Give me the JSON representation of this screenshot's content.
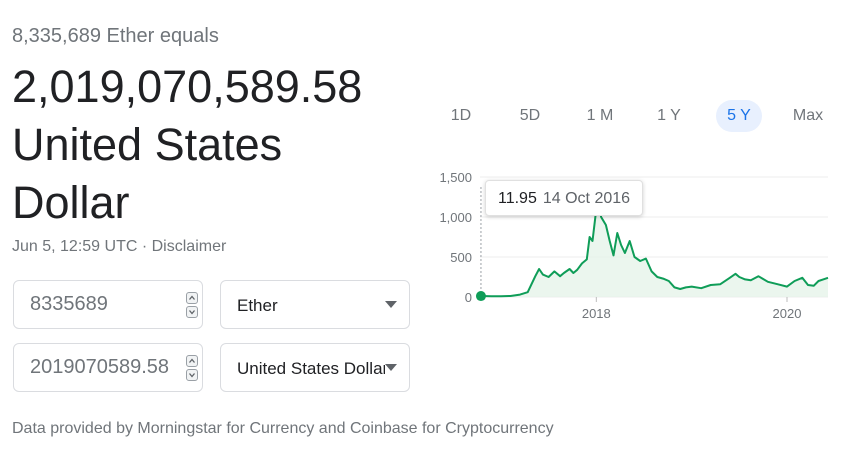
{
  "header": {
    "subtitle": "8,335,689 Ether equals",
    "result_line1": "2,019,070,589.58",
    "result_line2": "United States",
    "result_line3": "Dollar"
  },
  "meta": {
    "timestamp": "Jun 5, 12:59 UTC",
    "separator": " · ",
    "disclaimer": "Disclaimer"
  },
  "converter": {
    "from_value": "8335689",
    "from_currency": "Ether",
    "to_value": "2019070589.58",
    "to_currency": "United States Dollar"
  },
  "footer": {
    "attribution": "Data provided by Morningstar for Currency and Coinbase for Cryptocurrency"
  },
  "range_tabs": [
    {
      "label": "1D",
      "active": false
    },
    {
      "label": "5D",
      "active": false
    },
    {
      "label": "1 M",
      "active": false
    },
    {
      "label": "1 Y",
      "active": false
    },
    {
      "label": "5 Y",
      "active": true
    },
    {
      "label": "Max",
      "active": false
    }
  ],
  "tooltip": {
    "value": "11.95",
    "date": "14 Oct 2016"
  },
  "colors": {
    "line": "#0f9d58",
    "fill": "#e6f4ea",
    "accent": "#1a73e8",
    "accent_bg": "#e8f0fe"
  },
  "chart_data": {
    "type": "area",
    "title": "",
    "xlabel": "",
    "ylabel": "",
    "ylim": [
      0,
      1500
    ],
    "yticks": [
      0,
      500,
      1000,
      1500
    ],
    "ytick_labels": [
      "0",
      "500",
      "1,000",
      "1,500"
    ],
    "xlim": [
      2016.78,
      2020.43
    ],
    "xticks": [
      2018,
      2020
    ],
    "xtick_labels": [
      "2018",
      "2020"
    ],
    "grid": true,
    "legend": "none",
    "highlight_point": {
      "x": 2016.79,
      "y": 11.95
    },
    "x": [
      2016.79,
      2016.9,
      2017.0,
      2017.1,
      2017.2,
      2017.28,
      2017.36,
      2017.4,
      2017.44,
      2017.5,
      2017.56,
      2017.62,
      2017.66,
      2017.72,
      2017.76,
      2017.8,
      2017.85,
      2017.9,
      2017.93,
      2017.96,
      2018.0,
      2018.02,
      2018.05,
      2018.1,
      2018.14,
      2018.18,
      2018.22,
      2018.26,
      2018.3,
      2018.35,
      2018.4,
      2018.46,
      2018.52,
      2018.58,
      2018.64,
      2018.7,
      2018.76,
      2018.82,
      2018.88,
      2018.94,
      2019.0,
      2019.1,
      2019.2,
      2019.3,
      2019.4,
      2019.46,
      2019.5,
      2019.56,
      2019.62,
      2019.7,
      2019.8,
      2019.9,
      2020.0,
      2020.08,
      2020.16,
      2020.22,
      2020.28,
      2020.33,
      2020.38,
      2020.43
    ],
    "y": [
      12,
      10,
      10,
      12,
      30,
      60,
      260,
      350,
      280,
      250,
      320,
      260,
      300,
      350,
      300,
      340,
      420,
      470,
      750,
      700,
      1100,
      1200,
      1000,
      900,
      700,
      520,
      800,
      650,
      550,
      700,
      500,
      450,
      480,
      320,
      250,
      230,
      200,
      120,
      100,
      120,
      130,
      110,
      150,
      160,
      240,
      290,
      250,
      220,
      210,
      260,
      190,
      160,
      130,
      200,
      240,
      150,
      140,
      200,
      220,
      240
    ]
  }
}
